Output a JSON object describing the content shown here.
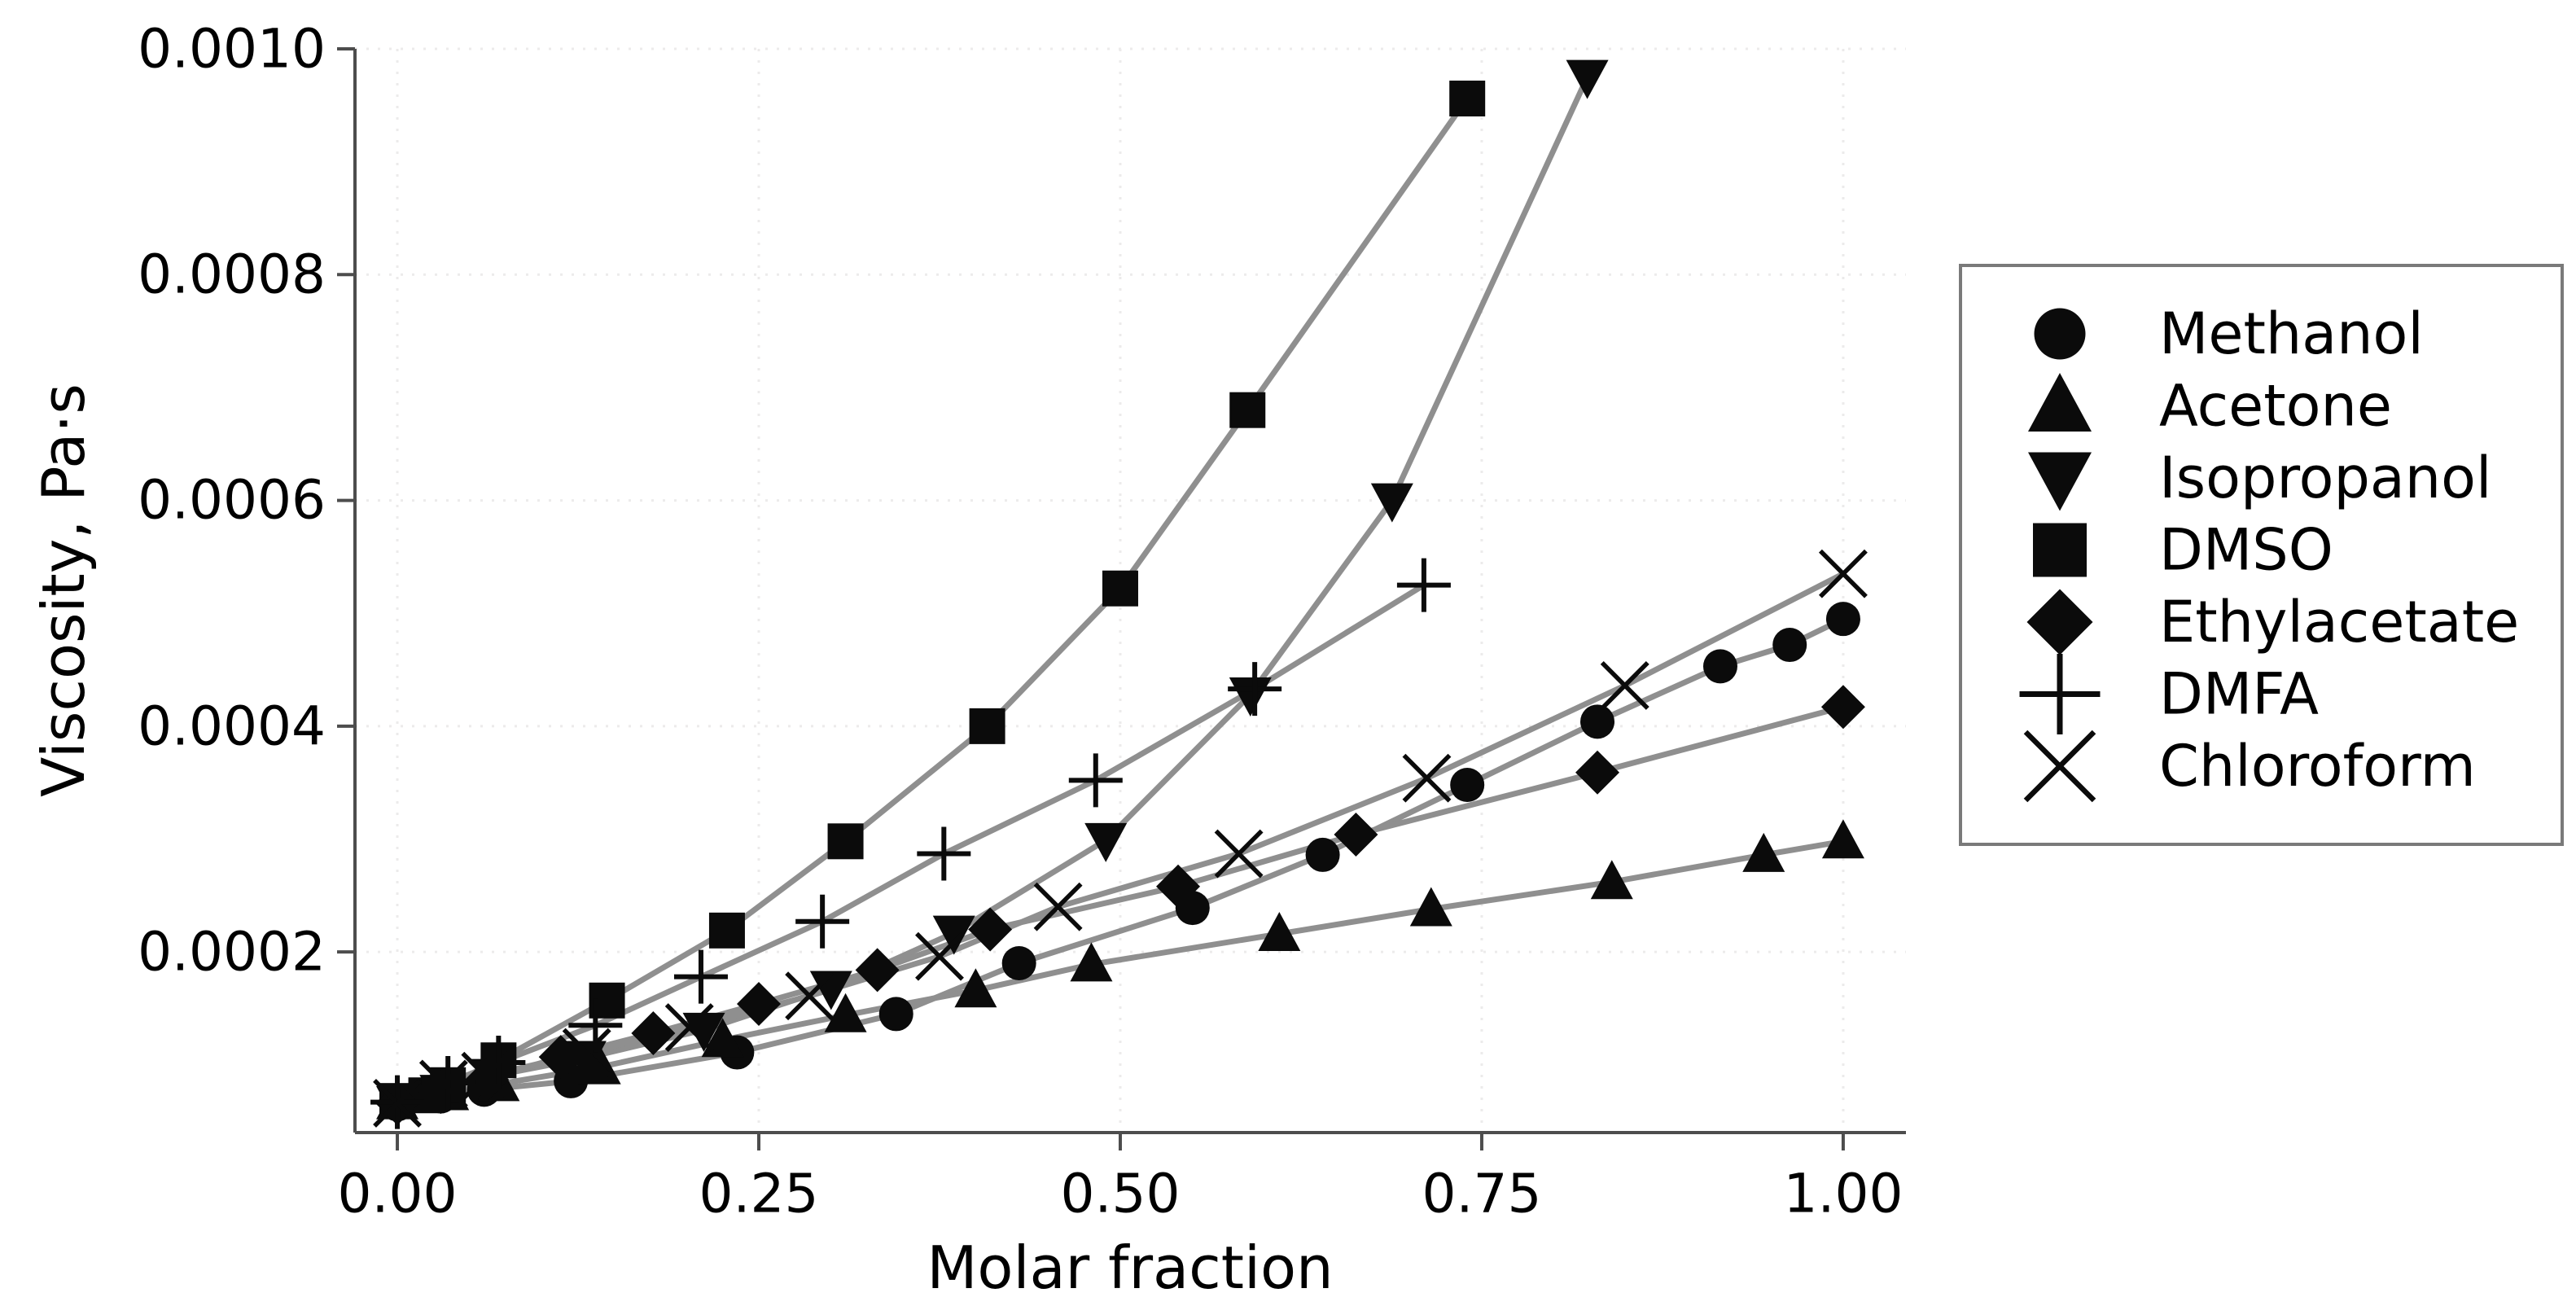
{
  "figure": {
    "background": "#ffffff",
    "title": ""
  },
  "chart_data": {
    "type": "line",
    "title": "",
    "xlabel": "Molar fraction",
    "ylabel": "Viscosity, Pa·s",
    "xlim": [
      -0.0293,
      1.0434
    ],
    "ylim": [
      4e-05,
      0.001
    ],
    "grid": "dotted",
    "legend_position": "right-outside",
    "colors": {
      "line": "#8f8f8f",
      "marker": "#0b0b0b",
      "spine": "#4d4d4d",
      "gridline": "#ecebeb",
      "text": "#000000",
      "legend_border": "#7a7a7a",
      "legend_background": "#ffffff"
    },
    "x_ticks": [
      {
        "value": 0.0,
        "label": "0.00"
      },
      {
        "value": 0.25,
        "label": "0.25"
      },
      {
        "value": 0.5,
        "label": "0.50"
      },
      {
        "value": 0.75,
        "label": "0.75"
      },
      {
        "value": 1.0,
        "label": "1.00"
      }
    ],
    "y_ticks": [
      {
        "value": 0.0002,
        "label": "0.0002"
      },
      {
        "value": 0.0004,
        "label": "0.0004"
      },
      {
        "value": 0.0006,
        "label": "0.0006"
      },
      {
        "value": 0.0008,
        "label": "0.0008"
      },
      {
        "value": 0.001,
        "label": "0.0010"
      }
    ],
    "series": [
      {
        "name": "Methanol",
        "marker": "circle",
        "points": [
          [
            0.0,
            6.5e-05
          ],
          [
            0.03,
            7.2e-05
          ],
          [
            0.06,
            7.8e-05
          ],
          [
            0.12,
            8.55e-05
          ],
          [
            0.235,
            0.000111
          ],
          [
            0.345,
            0.000145
          ],
          [
            0.43,
            0.00019
          ],
          [
            0.55,
            0.000239
          ],
          [
            0.64,
            0.000286
          ],
          [
            0.74,
            0.000348
          ],
          [
            0.83,
            0.000404
          ],
          [
            0.915,
            0.000453
          ],
          [
            0.963,
            0.000472
          ],
          [
            1.0,
            0.000495
          ]
        ]
      },
      {
        "name": "Acetone",
        "marker": "triangle-up",
        "points": [
          [
            0.0,
            6.7e-05
          ],
          [
            0.035,
            7.5e-05
          ],
          [
            0.07,
            8.3e-05
          ],
          [
            0.14,
            9.8e-05
          ],
          [
            0.225,
            0.000122
          ],
          [
            0.31,
            0.000144
          ],
          [
            0.4,
            0.000166
          ],
          [
            0.48,
            0.000189
          ],
          [
            0.61,
            0.000216
          ],
          [
            0.715,
            0.000238
          ],
          [
            0.84,
            0.000262
          ],
          [
            0.945,
            0.000286
          ],
          [
            1.0,
            0.000298
          ]
        ]
      },
      {
        "name": "Isopropanol",
        "marker": "triangle-down",
        "points": [
          [
            0.0,
            6.6e-05
          ],
          [
            0.03,
            7.6e-05
          ],
          [
            0.065,
            9e-05
          ],
          [
            0.13,
            0.000106
          ],
          [
            0.212,
            0.000131
          ],
          [
            0.3,
            0.000168
          ],
          [
            0.385,
            0.000217
          ],
          [
            0.49,
            0.000299
          ],
          [
            0.59,
            0.000428
          ],
          [
            0.688,
            0.0006
          ],
          [
            0.823,
            0.000975
          ]
        ]
      },
      {
        "name": "DMSO",
        "marker": "square",
        "points": [
          [
            0.0,
            6.8e-05
          ],
          [
            0.02,
            7.3e-05
          ],
          [
            0.035,
            8.2e-05
          ],
          [
            0.07,
            0.000104
          ],
          [
            0.145,
            0.000157
          ],
          [
            0.228,
            0.000219
          ],
          [
            0.31,
            0.000298
          ],
          [
            0.408,
            0.0004
          ],
          [
            0.5,
            0.000522
          ],
          [
            0.588,
            0.00068
          ],
          [
            0.74,
            0.000956
          ]
        ]
      },
      {
        "name": "Ethylacetate",
        "marker": "diamond",
        "points": [
          [
            0.0,
            6.6e-05
          ],
          [
            0.03,
            7.6e-05
          ],
          [
            0.062,
            8.7e-05
          ],
          [
            0.113,
            0.000107
          ],
          [
            0.177,
            0.000128
          ],
          [
            0.25,
            0.000154
          ],
          [
            0.332,
            0.000184
          ],
          [
            0.41,
            0.00022
          ],
          [
            0.54,
            0.000258
          ],
          [
            0.663,
            0.000304
          ],
          [
            0.83,
            0.000359
          ],
          [
            1.0,
            0.000417
          ]
        ]
      },
      {
        "name": "DMFA",
        "marker": "plus",
        "points": [
          [
            0.0,
            6.7e-05
          ],
          [
            0.035,
            8.4e-05
          ],
          [
            0.07,
            0.000102
          ],
          [
            0.137,
            0.000135
          ],
          [
            0.21,
            0.000178
          ],
          [
            0.294,
            0.000227
          ],
          [
            0.378,
            0.000287
          ],
          [
            0.483,
            0.000352
          ],
          [
            0.593,
            0.000433
          ],
          [
            0.71,
            0.000525
          ]
        ]
      },
      {
        "name": "Chloroform",
        "marker": "x",
        "points": [
          [
            0.0,
            6.6e-05
          ],
          [
            0.032,
            8.3e-05
          ],
          [
            0.061,
            9e-05
          ],
          [
            0.131,
            0.000111
          ],
          [
            0.202,
            0.000133
          ],
          [
            0.285,
            0.000161
          ],
          [
            0.375,
            0.000196
          ],
          [
            0.457,
            0.00024
          ],
          [
            0.582,
            0.000287
          ],
          [
            0.712,
            0.000354
          ],
          [
            0.849,
            0.000436
          ],
          [
            1.0,
            0.000535
          ]
        ]
      }
    ]
  }
}
